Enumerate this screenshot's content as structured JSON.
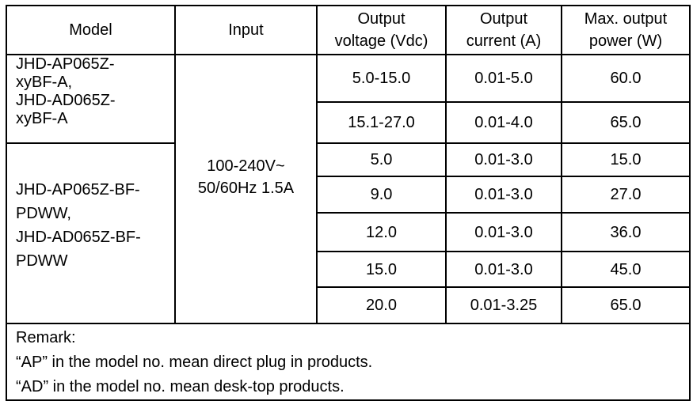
{
  "headers": {
    "model": "Model",
    "input": "Input",
    "voltage": [
      "Output",
      "voltage (Vdc)"
    ],
    "current": [
      "Output",
      "current (A)"
    ],
    "power": [
      "Max. output",
      "power (W)"
    ]
  },
  "groups": [
    {
      "model_lines": [
        "JHD-AP065Z-",
        "xyBF-A,",
        "JHD-AD065Z-",
        "xyBF-A"
      ]
    },
    {
      "model_lines": [
        "JHD-AP065Z-BF-",
        "PDWW,",
        "JHD-AD065Z-BF-",
        "PDWW"
      ]
    }
  ],
  "input_lines": [
    "100-240V~",
    "50/60Hz 1.5A"
  ],
  "rows": [
    {
      "voltage": "5.0-15.0",
      "current": "0.01-5.0",
      "power": "60.0"
    },
    {
      "voltage": "15.1-27.0",
      "current": "0.01-4.0",
      "power": "65.0"
    },
    {
      "voltage": "5.0",
      "current": "0.01-3.0",
      "power": "15.0"
    },
    {
      "voltage": "9.0",
      "current": "0.01-3.0",
      "power": "27.0"
    },
    {
      "voltage": "12.0",
      "current": "0.01-3.0",
      "power": "36.0"
    },
    {
      "voltage": "15.0",
      "current": "0.01-3.0",
      "power": "45.0"
    },
    {
      "voltage": "20.0",
      "current": "0.01-3.25",
      "power": "65.0"
    }
  ],
  "remark": {
    "title": "Remark:",
    "lines": [
      "“AP” in the model no. mean direct plug in products.",
      "“AD” in the model no. mean desk-top products."
    ]
  }
}
